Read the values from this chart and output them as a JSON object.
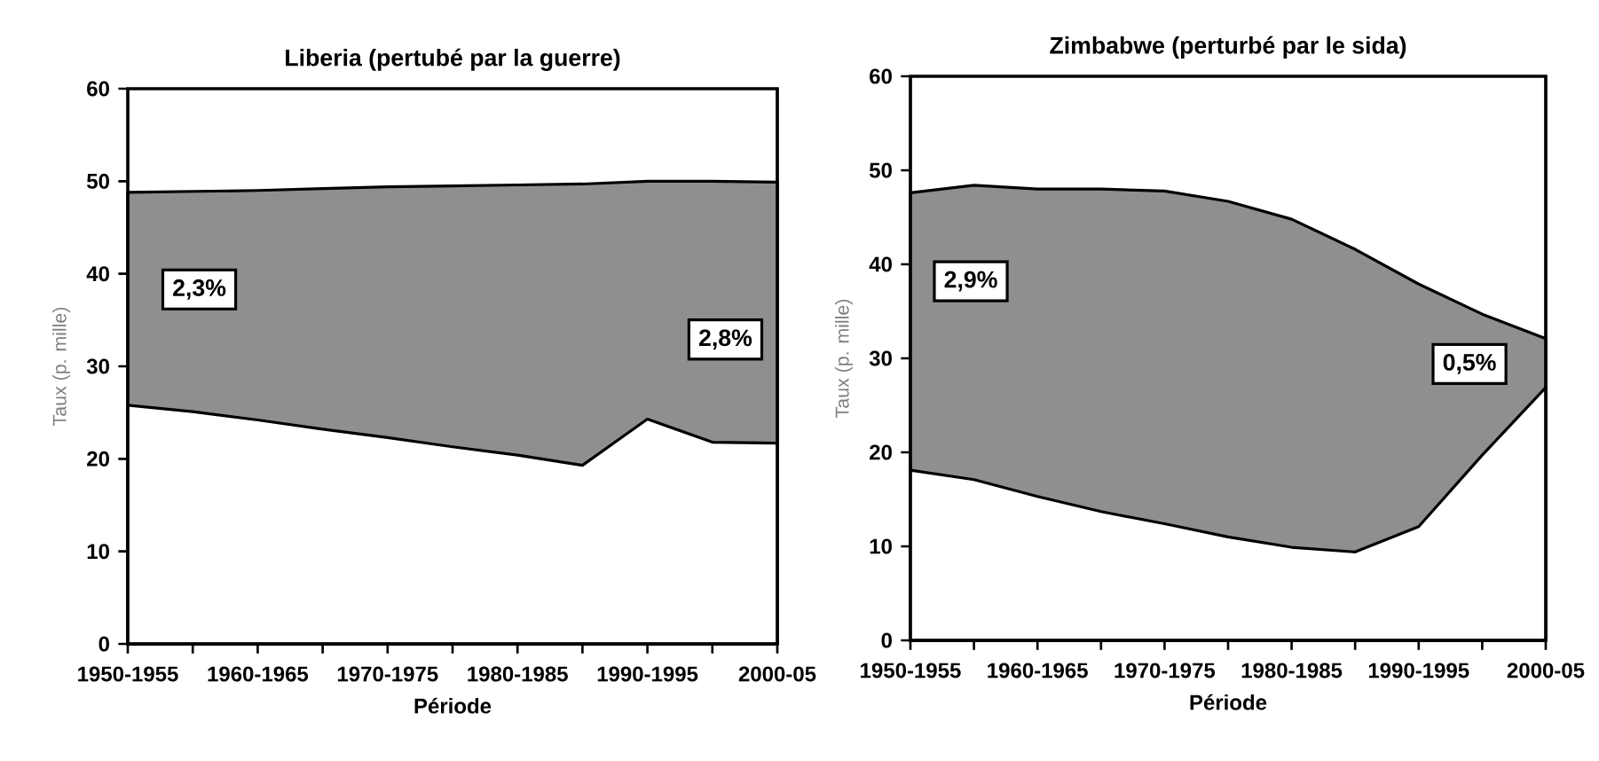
{
  "chart_data": [
    {
      "type": "area",
      "title": "Liberia (pertubé par la guerre)",
      "xlabel": "Période",
      "ylabel": "Taux (p. mille)",
      "categories": [
        "1950-1955",
        null,
        "1960-1965",
        null,
        "1970-1975",
        null,
        "1980-1985",
        null,
        "1990-1995",
        null,
        "2000-05"
      ],
      "series": [
        {
          "color": "#8f8f8f",
          "values": [
            48.8,
            48.9,
            49.0,
            49.2,
            49.4,
            49.5,
            49.6,
            49.7,
            50.0,
            50.0,
            49.9
          ]
        },
        {
          "color": "#ffffff",
          "values": [
            25.8,
            25.1,
            24.2,
            23.2,
            22.3,
            21.3,
            20.4,
            19.3,
            24.3,
            21.8,
            21.7
          ]
        }
      ],
      "ylim": [
        0,
        60
      ],
      "yticks": [
        0,
        10,
        20,
        30,
        40,
        50,
        60
      ],
      "annotations": [
        "2,3%",
        "2,8%"
      ]
    },
    {
      "type": "area",
      "title": "Zimbabwe (perturbé par le sida)",
      "xlabel": "Période",
      "ylabel": "Taux (p. mille)",
      "categories": [
        "1950-1955",
        null,
        "1960-1965",
        null,
        "1970-1975",
        null,
        "1980-1985",
        null,
        "1990-1995",
        null,
        "2000-05"
      ],
      "series": [
        {
          "color": "#8f8f8f",
          "values": [
            47.6,
            48.4,
            48.0,
            48.0,
            47.8,
            46.7,
            44.8,
            41.6,
            37.9,
            34.7,
            32.1
          ]
        },
        {
          "color": "#ffffff",
          "values": [
            18.1,
            17.1,
            15.3,
            13.7,
            12.4,
            11.0,
            9.9,
            9.4,
            12.1,
            19.7,
            26.9
          ]
        }
      ],
      "ylim": [
        0,
        60
      ],
      "yticks": [
        0,
        10,
        20,
        30,
        40,
        50,
        60
      ],
      "annotations": [
        "2,9%",
        "0,5%"
      ]
    }
  ]
}
